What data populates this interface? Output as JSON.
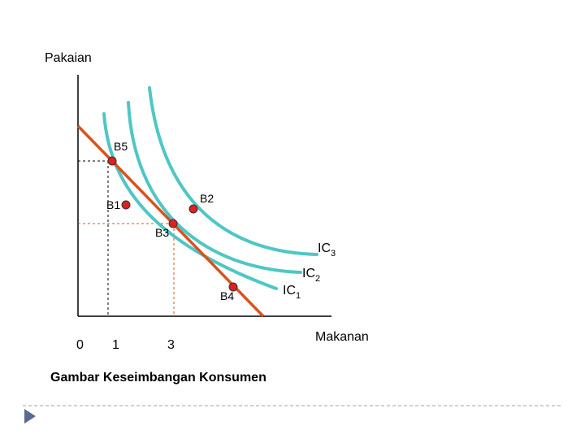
{
  "axes": {
    "y_label": "Pakaian",
    "x_label": "Makanan",
    "origin": "0",
    "x_ticks": [
      "1",
      "3"
    ]
  },
  "points": [
    "B5",
    "B1",
    "B2",
    "B3",
    "B4"
  ],
  "curves": [
    {
      "label": "IC",
      "sub": "1"
    },
    {
      "label": "IC",
      "sub": "2"
    },
    {
      "label": "IC",
      "sub": "3"
    }
  ],
  "caption": "Gambar Keseimbangan Konsumen",
  "colors": {
    "curve": "#4fc6c6",
    "budget_line": "#d9531e",
    "point": "#e02020",
    "guide_black": "#000000",
    "guide_red": "#d9531e",
    "footer_line": "#9aa3b8",
    "nav_arrow": "#5a6a8e"
  }
}
